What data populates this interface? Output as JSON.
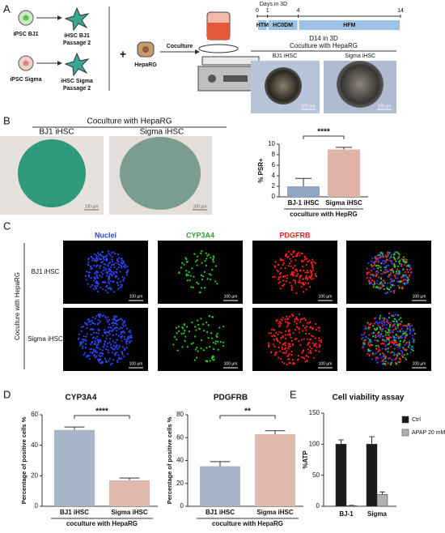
{
  "panel_labels": [
    "A",
    "B",
    "C",
    "D",
    "E"
  ],
  "panel_a": {
    "cells": [
      [
        "iPSC BJ1"
      ],
      [
        "iHSC BJ1",
        "Passage 2"
      ],
      [
        "iPSC Sigma"
      ],
      [
        "iHSC Sigma",
        "Passage 2"
      ]
    ],
    "plus": "+",
    "heparg": "HepaRG",
    "coculture": "Coculture",
    "timeline": {
      "title": "Days in 3D",
      "days": [
        0,
        1,
        4,
        14
      ],
      "phases": [
        "HTM",
        "HC0DM",
        "HFM"
      ]
    },
    "images": {
      "title": "D14 in 3D",
      "subtitle": "Coculture with HepaRG",
      "labels": [
        "BJ1 iHSC",
        "Sigma iHSC"
      ]
    },
    "scale": "100 µm"
  },
  "panel_b": {
    "title": "Coculture with HepaRG",
    "labels": [
      "BJ1 iHSC",
      "Sigma iHSC"
    ],
    "scale": "100 µm"
  },
  "panel_c": {
    "channels": [
      "Nuclei",
      "CYP3A4",
      "PDGFRB"
    ],
    "side": "Coculture with HepaRG",
    "rows": [
      "BJ1 iHSC",
      "Sigma iHSC"
    ],
    "scale": "100 µm"
  },
  "chart_data": [
    {
      "type": "bar",
      "ylabel": "% PSR+",
      "xlabel": "coculture with HepRG",
      "categories": [
        "BJ-1 iHSC",
        "Sigma iHSC"
      ],
      "values": [
        2,
        9
      ],
      "errors": [
        1.5,
        0.4
      ],
      "colors": [
        "#8fa6c4",
        "#dfb3a6"
      ],
      "ylim": [
        0,
        10
      ],
      "yticks": [
        0,
        2,
        4,
        6,
        8,
        10
      ],
      "significance": "****"
    },
    {
      "type": "bar",
      "title": "CYP3A4",
      "ylabel": "Percentage of positive cells %",
      "xlabel": "coculture with HepaRG",
      "categories": [
        "BJ1 iHSC",
        "Sigma iHSC"
      ],
      "values": [
        50,
        17
      ],
      "errors": [
        2,
        1.5
      ],
      "colors": [
        "#a7b5c9",
        "#dfb9ab"
      ],
      "ylim": [
        0,
        60
      ],
      "yticks": [
        0,
        20,
        40,
        60
      ],
      "significance": "****"
    },
    {
      "type": "bar",
      "title": "PDGFRB",
      "ylabel": "Percentage of positive cells %",
      "xlabel": "coculture with HepaRG",
      "categories": [
        "BJ1 iHSC",
        "Sigma iHSC"
      ],
      "values": [
        35,
        63
      ],
      "errors": [
        4,
        3
      ],
      "colors": [
        "#a7b5c9",
        "#dfb9ab"
      ],
      "ylim": [
        0,
        80
      ],
      "yticks": [
        0,
        20,
        40,
        60,
        80
      ],
      "significance": "**"
    },
    {
      "type": "grouped_bar",
      "title": "Cell viability assay",
      "ylabel": "%ATP",
      "categories": [
        "BJ-1",
        "Sigma"
      ],
      "series": [
        {
          "name": "Ctrl",
          "color": "#1a1a1a",
          "values": [
            100,
            100
          ],
          "errors": [
            7,
            12
          ]
        },
        {
          "name": "APAP 20 mM",
          "color": "#b0b0b0",
          "values": [
            1,
            19
          ],
          "errors": [
            0.5,
            4
          ]
        }
      ],
      "ylim": [
        0,
        150
      ],
      "yticks": [
        0,
        50,
        100,
        150
      ]
    }
  ]
}
